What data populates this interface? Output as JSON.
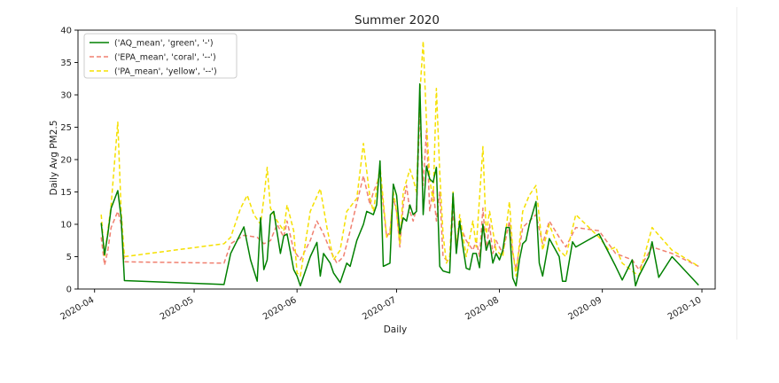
{
  "chart_data": {
    "type": "line",
    "title": "Summer 2020",
    "xlabel": "Daily",
    "ylabel": "Daily Avg PM2.5",
    "ylim": [
      0,
      40
    ],
    "xlim": [
      "2020-03-27",
      "2020-10-05"
    ],
    "yticks": [
      0,
      5,
      10,
      15,
      20,
      25,
      30,
      35,
      40
    ],
    "xticks": [
      "2020-04",
      "2020-05",
      "2020-06",
      "2020-07",
      "2020-08",
      "2020-09",
      "2020-10"
    ],
    "grid": false,
    "legend_position": "top-left",
    "series": [
      {
        "name": "('AQ_mean', 'green', '-')",
        "color": "#008000",
        "dash": "solid",
        "points": [
          [
            "2020-04-03",
            10.2
          ],
          [
            "2020-04-04",
            5.3
          ],
          [
            "2020-04-05",
            8.5
          ],
          [
            "2020-04-06",
            12.5
          ],
          [
            "2020-04-08",
            15.2
          ],
          [
            "2020-04-09",
            11.0
          ],
          [
            "2020-04-10",
            1.3
          ],
          [
            "2020-05-10",
            0.7
          ],
          [
            "2020-05-12",
            5.5
          ],
          [
            "2020-05-16",
            9.6
          ],
          [
            "2020-05-18",
            4.5
          ],
          [
            "2020-05-20",
            1.2
          ],
          [
            "2020-05-21",
            11.0
          ],
          [
            "2020-05-22",
            3.0
          ],
          [
            "2020-05-23",
            4.5
          ],
          [
            "2020-05-24",
            11.5
          ],
          [
            "2020-05-25",
            12.0
          ],
          [
            "2020-05-27",
            5.5
          ],
          [
            "2020-05-28",
            8.2
          ],
          [
            "2020-05-29",
            8.5
          ],
          [
            "2020-05-31",
            3.0
          ],
          [
            "2020-06-01",
            2.0
          ],
          [
            "2020-06-02",
            0.5
          ],
          [
            "2020-06-05",
            5.0
          ],
          [
            "2020-06-07",
            7.2
          ],
          [
            "2020-06-08",
            2.0
          ],
          [
            "2020-06-09",
            5.5
          ],
          [
            "2020-06-11",
            4.0
          ],
          [
            "2020-06-12",
            2.5
          ],
          [
            "2020-06-14",
            1.0
          ],
          [
            "2020-06-16",
            4.0
          ],
          [
            "2020-06-17",
            3.5
          ],
          [
            "2020-06-19",
            7.5
          ],
          [
            "2020-06-21",
            10.0
          ],
          [
            "2020-06-22",
            12.0
          ],
          [
            "2020-06-24",
            11.5
          ],
          [
            "2020-06-25",
            13.0
          ],
          [
            "2020-06-26",
            19.8
          ],
          [
            "2020-06-27",
            3.5
          ],
          [
            "2020-06-29",
            4.0
          ],
          [
            "2020-06-30",
            16.2
          ],
          [
            "2020-07-01",
            14.5
          ],
          [
            "2020-07-02",
            8.5
          ],
          [
            "2020-07-03",
            11.0
          ],
          [
            "2020-07-04",
            10.5
          ],
          [
            "2020-07-05",
            13.0
          ],
          [
            "2020-07-06",
            11.5
          ],
          [
            "2020-07-07",
            12.0
          ],
          [
            "2020-07-08",
            31.7
          ],
          [
            "2020-07-09",
            11.5
          ],
          [
            "2020-07-10",
            19.0
          ],
          [
            "2020-07-11",
            17.0
          ],
          [
            "2020-07-12",
            16.5
          ],
          [
            "2020-07-13",
            18.8
          ],
          [
            "2020-07-14",
            3.5
          ],
          [
            "2020-07-15",
            2.8
          ],
          [
            "2020-07-17",
            2.5
          ],
          [
            "2020-07-18",
            14.8
          ],
          [
            "2020-07-19",
            5.5
          ],
          [
            "2020-07-20",
            10.5
          ],
          [
            "2020-07-21",
            6.5
          ],
          [
            "2020-07-22",
            3.2
          ],
          [
            "2020-07-23",
            3.0
          ],
          [
            "2020-07-24",
            5.5
          ],
          [
            "2020-07-25",
            5.5
          ],
          [
            "2020-07-26",
            3.3
          ],
          [
            "2020-07-27",
            10.0
          ],
          [
            "2020-07-28",
            6.0
          ],
          [
            "2020-07-29",
            7.5
          ],
          [
            "2020-07-30",
            4.0
          ],
          [
            "2020-07-31",
            5.5
          ],
          [
            "2020-08-01",
            4.5
          ],
          [
            "2020-08-02",
            6.0
          ],
          [
            "2020-08-03",
            9.5
          ],
          [
            "2020-08-04",
            9.5
          ],
          [
            "2020-08-05",
            1.7
          ],
          [
            "2020-08-06",
            0.5
          ],
          [
            "2020-08-07",
            4.5
          ],
          [
            "2020-08-08",
            7.0
          ],
          [
            "2020-08-09",
            7.5
          ],
          [
            "2020-08-10",
            10.0
          ],
          [
            "2020-08-12",
            13.5
          ],
          [
            "2020-08-13",
            4.0
          ],
          [
            "2020-08-14",
            2.0
          ],
          [
            "2020-08-16",
            7.8
          ],
          [
            "2020-08-19",
            5.0
          ],
          [
            "2020-08-20",
            1.2
          ],
          [
            "2020-08-21",
            1.2
          ],
          [
            "2020-08-23",
            7.3
          ],
          [
            "2020-08-24",
            6.5
          ],
          [
            "2020-08-31",
            8.5
          ],
          [
            "2020-09-05",
            3.5
          ],
          [
            "2020-09-07",
            1.4
          ],
          [
            "2020-09-10",
            4.5
          ],
          [
            "2020-09-11",
            0.5
          ],
          [
            "2020-09-12",
            2.0
          ],
          [
            "2020-09-15",
            5.0
          ],
          [
            "2020-09-16",
            7.3
          ],
          [
            "2020-09-18",
            1.8
          ],
          [
            "2020-09-22",
            5.0
          ],
          [
            "2020-09-30",
            0.6
          ]
        ]
      },
      {
        "name": "('EPA_mean', 'coral', '--')",
        "color": "#f08070",
        "dash": "5,3",
        "points": [
          [
            "2020-04-03",
            8.0
          ],
          [
            "2020-04-04",
            3.7
          ],
          [
            "2020-04-05",
            6.0
          ],
          [
            "2020-04-06",
            9.5
          ],
          [
            "2020-04-08",
            12.0
          ],
          [
            "2020-04-09",
            10.0
          ],
          [
            "2020-04-10",
            4.2
          ],
          [
            "2020-05-10",
            4.0
          ],
          [
            "2020-05-12",
            7.0
          ],
          [
            "2020-05-16",
            8.3
          ],
          [
            "2020-05-20",
            8.0
          ],
          [
            "2020-05-22",
            7.0
          ],
          [
            "2020-05-24",
            7.5
          ],
          [
            "2020-05-26",
            10.0
          ],
          [
            "2020-05-28",
            8.0
          ],
          [
            "2020-05-29",
            10.5
          ],
          [
            "2020-05-31",
            6.0
          ],
          [
            "2020-06-02",
            4.5
          ],
          [
            "2020-06-05",
            7.5
          ],
          [
            "2020-06-07",
            10.5
          ],
          [
            "2020-06-09",
            8.5
          ],
          [
            "2020-06-11",
            6.0
          ],
          [
            "2020-06-13",
            4.0
          ],
          [
            "2020-06-15",
            5.0
          ],
          [
            "2020-06-17",
            9.0
          ],
          [
            "2020-06-21",
            17.5
          ],
          [
            "2020-06-23",
            13.0
          ],
          [
            "2020-06-24",
            15.0
          ],
          [
            "2020-06-26",
            17.5
          ],
          [
            "2020-06-28",
            8.0
          ],
          [
            "2020-06-29",
            9.0
          ],
          [
            "2020-06-30",
            14.0
          ],
          [
            "2020-07-01",
            12.0
          ],
          [
            "2020-07-02",
            6.5
          ],
          [
            "2020-07-03",
            13.0
          ],
          [
            "2020-07-04",
            16.0
          ],
          [
            "2020-07-05",
            12.0
          ],
          [
            "2020-07-06",
            10.5
          ],
          [
            "2020-07-07",
            12.5
          ],
          [
            "2020-07-08",
            27.5
          ],
          [
            "2020-07-09",
            16.0
          ],
          [
            "2020-07-10",
            24.5
          ],
          [
            "2020-07-11",
            12.0
          ],
          [
            "2020-07-12",
            15.5
          ],
          [
            "2020-07-13",
            10.5
          ],
          [
            "2020-07-14",
            15.0
          ],
          [
            "2020-07-15",
            5.0
          ],
          [
            "2020-07-17",
            4.0
          ],
          [
            "2020-07-18",
            12.0
          ],
          [
            "2020-07-19",
            7.0
          ],
          [
            "2020-07-20",
            10.0
          ],
          [
            "2020-07-22",
            7.5
          ],
          [
            "2020-07-24",
            6.0
          ],
          [
            "2020-07-25",
            7.5
          ],
          [
            "2020-07-26",
            5.0
          ],
          [
            "2020-07-27",
            12.5
          ],
          [
            "2020-07-28",
            6.0
          ],
          [
            "2020-07-29",
            10.0
          ],
          [
            "2020-07-30",
            5.5
          ],
          [
            "2020-07-31",
            7.5
          ],
          [
            "2020-08-02",
            5.5
          ],
          [
            "2020-08-04",
            10.5
          ],
          [
            "2020-08-05",
            5.5
          ],
          [
            "2020-08-06",
            3.0
          ],
          [
            "2020-08-08",
            9.5
          ],
          [
            "2020-08-10",
            10.5
          ],
          [
            "2020-08-12",
            11.5
          ],
          [
            "2020-08-14",
            7.0
          ],
          [
            "2020-08-16",
            10.5
          ],
          [
            "2020-08-19",
            8.0
          ],
          [
            "2020-08-21",
            6.5
          ],
          [
            "2020-08-24",
            9.5
          ],
          [
            "2020-08-31",
            9.0
          ],
          [
            "2020-09-05",
            5.5
          ],
          [
            "2020-09-10",
            4.5
          ],
          [
            "2020-09-12",
            3.0
          ],
          [
            "2020-09-16",
            6.5
          ],
          [
            "2020-09-22",
            5.5
          ],
          [
            "2020-09-30",
            3.5
          ]
        ]
      },
      {
        "name": "('PA_mean', 'yellow', '--')",
        "color": "#f5e000",
        "dash": "5,3",
        "points": [
          [
            "2020-04-03",
            11.5
          ],
          [
            "2020-04-04",
            5.0
          ],
          [
            "2020-04-05",
            9.0
          ],
          [
            "2020-04-06",
            13.0
          ],
          [
            "2020-04-08",
            25.8
          ],
          [
            "2020-04-09",
            12.0
          ],
          [
            "2020-04-10",
            5.0
          ],
          [
            "2020-05-10",
            7.0
          ],
          [
            "2020-05-12",
            8.0
          ],
          [
            "2020-05-15",
            12.5
          ],
          [
            "2020-05-17",
            14.5
          ],
          [
            "2020-05-19",
            11.5
          ],
          [
            "2020-05-21",
            10.0
          ],
          [
            "2020-05-22",
            14.0
          ],
          [
            "2020-05-23",
            18.8
          ],
          [
            "2020-05-24",
            12.5
          ],
          [
            "2020-05-26",
            10.5
          ],
          [
            "2020-05-28",
            9.0
          ],
          [
            "2020-05-29",
            13.0
          ],
          [
            "2020-05-31",
            9.0
          ],
          [
            "2020-06-01",
            2.5
          ],
          [
            "2020-06-02",
            2.0
          ],
          [
            "2020-06-05",
            12.0
          ],
          [
            "2020-06-08",
            15.5
          ],
          [
            "2020-06-10",
            9.5
          ],
          [
            "2020-06-12",
            4.5
          ],
          [
            "2020-06-14",
            6.0
          ],
          [
            "2020-06-16",
            12.0
          ],
          [
            "2020-06-19",
            14.0
          ],
          [
            "2020-06-21",
            22.5
          ],
          [
            "2020-06-23",
            14.0
          ],
          [
            "2020-06-24",
            12.0
          ],
          [
            "2020-06-26",
            19.0
          ],
          [
            "2020-06-28",
            8.0
          ],
          [
            "2020-06-29",
            8.5
          ],
          [
            "2020-06-30",
            15.0
          ],
          [
            "2020-07-01",
            12.0
          ],
          [
            "2020-07-02",
            7.0
          ],
          [
            "2020-07-03",
            15.0
          ],
          [
            "2020-07-05",
            18.5
          ],
          [
            "2020-07-06",
            17.0
          ],
          [
            "2020-07-07",
            15.0
          ],
          [
            "2020-07-08",
            30.0
          ],
          [
            "2020-07-09",
            38.3
          ],
          [
            "2020-07-10",
            26.0
          ],
          [
            "2020-07-11",
            17.0
          ],
          [
            "2020-07-12",
            13.5
          ],
          [
            "2020-07-13",
            31.0
          ],
          [
            "2020-07-14",
            18.0
          ],
          [
            "2020-07-15",
            8.5
          ],
          [
            "2020-07-16",
            4.0
          ],
          [
            "2020-07-17",
            5.0
          ],
          [
            "2020-07-18",
            15.0
          ],
          [
            "2020-07-19",
            6.0
          ],
          [
            "2020-07-20",
            11.5
          ],
          [
            "2020-07-22",
            5.0
          ],
          [
            "2020-07-24",
            10.5
          ],
          [
            "2020-07-25",
            6.5
          ],
          [
            "2020-07-27",
            22.0
          ],
          [
            "2020-07-28",
            8.5
          ],
          [
            "2020-07-29",
            12.0
          ],
          [
            "2020-07-31",
            6.0
          ],
          [
            "2020-08-02",
            5.0
          ],
          [
            "2020-08-04",
            13.5
          ],
          [
            "2020-08-05",
            6.0
          ],
          [
            "2020-08-06",
            2.0
          ],
          [
            "2020-08-08",
            12.0
          ],
          [
            "2020-08-10",
            14.5
          ],
          [
            "2020-08-12",
            16.0
          ],
          [
            "2020-08-14",
            6.0
          ],
          [
            "2020-08-16",
            10.0
          ],
          [
            "2020-08-19",
            6.0
          ],
          [
            "2020-08-21",
            5.0
          ],
          [
            "2020-08-24",
            11.5
          ],
          [
            "2020-08-31",
            8.0
          ],
          [
            "2020-09-03",
            6.0
          ],
          [
            "2020-09-05",
            6.5
          ],
          [
            "2020-09-07",
            4.0
          ],
          [
            "2020-09-12",
            2.0
          ],
          [
            "2020-09-16",
            9.5
          ],
          [
            "2020-09-22",
            6.0
          ],
          [
            "2020-09-30",
            3.5
          ]
        ]
      }
    ]
  }
}
